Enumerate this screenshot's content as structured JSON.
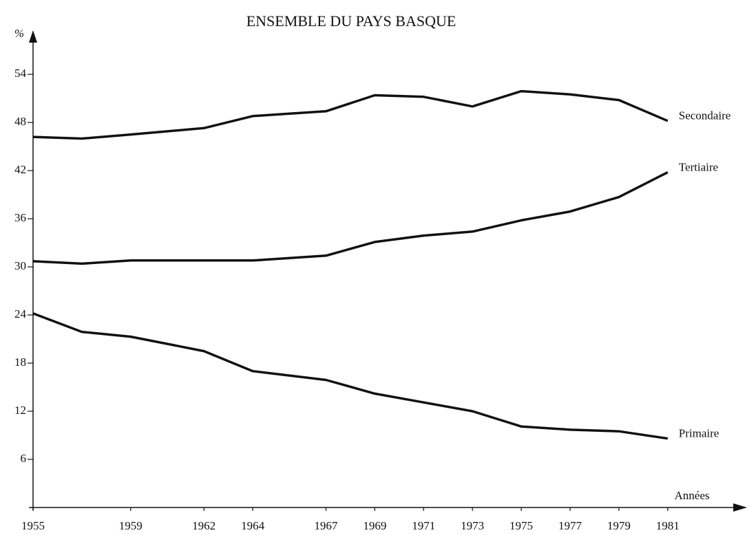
{
  "chart_data": {
    "type": "line",
    "title": "ENSEMBLE DU PAYS BASQUE",
    "y_label": "%",
    "x_label": "Années",
    "x": [
      1955,
      1957,
      1959,
      1962,
      1964,
      1967,
      1969,
      1971,
      1973,
      1975,
      1977,
      1979,
      1981
    ],
    "series": [
      {
        "name": "Secondaire",
        "color": "#111111",
        "values": [
          46.2,
          46.0,
          46.5,
          47.3,
          48.8,
          49.4,
          51.4,
          51.2,
          50.0,
          51.9,
          51.5,
          50.8,
          48.2
        ]
      },
      {
        "name": "Tertiaire",
        "color": "#111111",
        "values": [
          30.7,
          30.4,
          30.8,
          30.8,
          30.8,
          31.4,
          33.1,
          33.9,
          34.4,
          35.8,
          36.9,
          38.7,
          41.8
        ]
      },
      {
        "name": "Primaire",
        "color": "#111111",
        "values": [
          24.2,
          21.9,
          21.3,
          19.5,
          17.0,
          15.9,
          14.2,
          13.1,
          12.0,
          10.1,
          9.7,
          9.5,
          8.6
        ]
      }
    ],
    "xlim": [
      1955,
      1984.25
    ],
    "ylim": [
      0,
      59.5
    ],
    "xticks": [
      1955,
      1959,
      1962,
      1964,
      1967,
      1969,
      1971,
      1973,
      1975,
      1977,
      1979,
      1981
    ],
    "yticks": [
      6,
      12,
      18,
      24,
      30,
      36,
      42,
      48,
      54
    ],
    "grid": false
  }
}
